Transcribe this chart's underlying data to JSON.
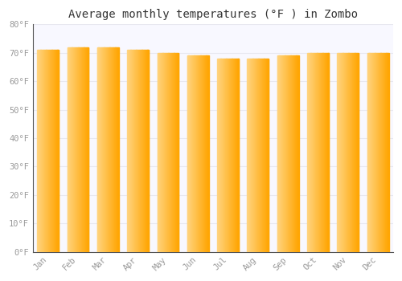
{
  "title": "Average monthly temperatures (°F ) in Zombo",
  "months": [
    "Jan",
    "Feb",
    "Mar",
    "Apr",
    "May",
    "Jun",
    "Jul",
    "Aug",
    "Sep",
    "Oct",
    "Nov",
    "Dec"
  ],
  "values": [
    71,
    72,
    72,
    71,
    70,
    69,
    68,
    68,
    69,
    70,
    70,
    70
  ],
  "bar_color_left": "#FFD580",
  "bar_color_right": "#FFA500",
  "background_color": "#FFFFFF",
  "plot_bg_color": "#F8F8FF",
  "ylim": [
    0,
    80
  ],
  "yticks": [
    0,
    10,
    20,
    30,
    40,
    50,
    60,
    70,
    80
  ],
  "ytick_labels": [
    "0°F",
    "10°F",
    "20°F",
    "30°F",
    "40°F",
    "50°F",
    "60°F",
    "70°F",
    "80°F"
  ],
  "grid_color": "#E8E8F0",
  "tick_color": "#999999",
  "title_fontsize": 10,
  "tick_fontsize": 7.5,
  "font_family": "monospace"
}
